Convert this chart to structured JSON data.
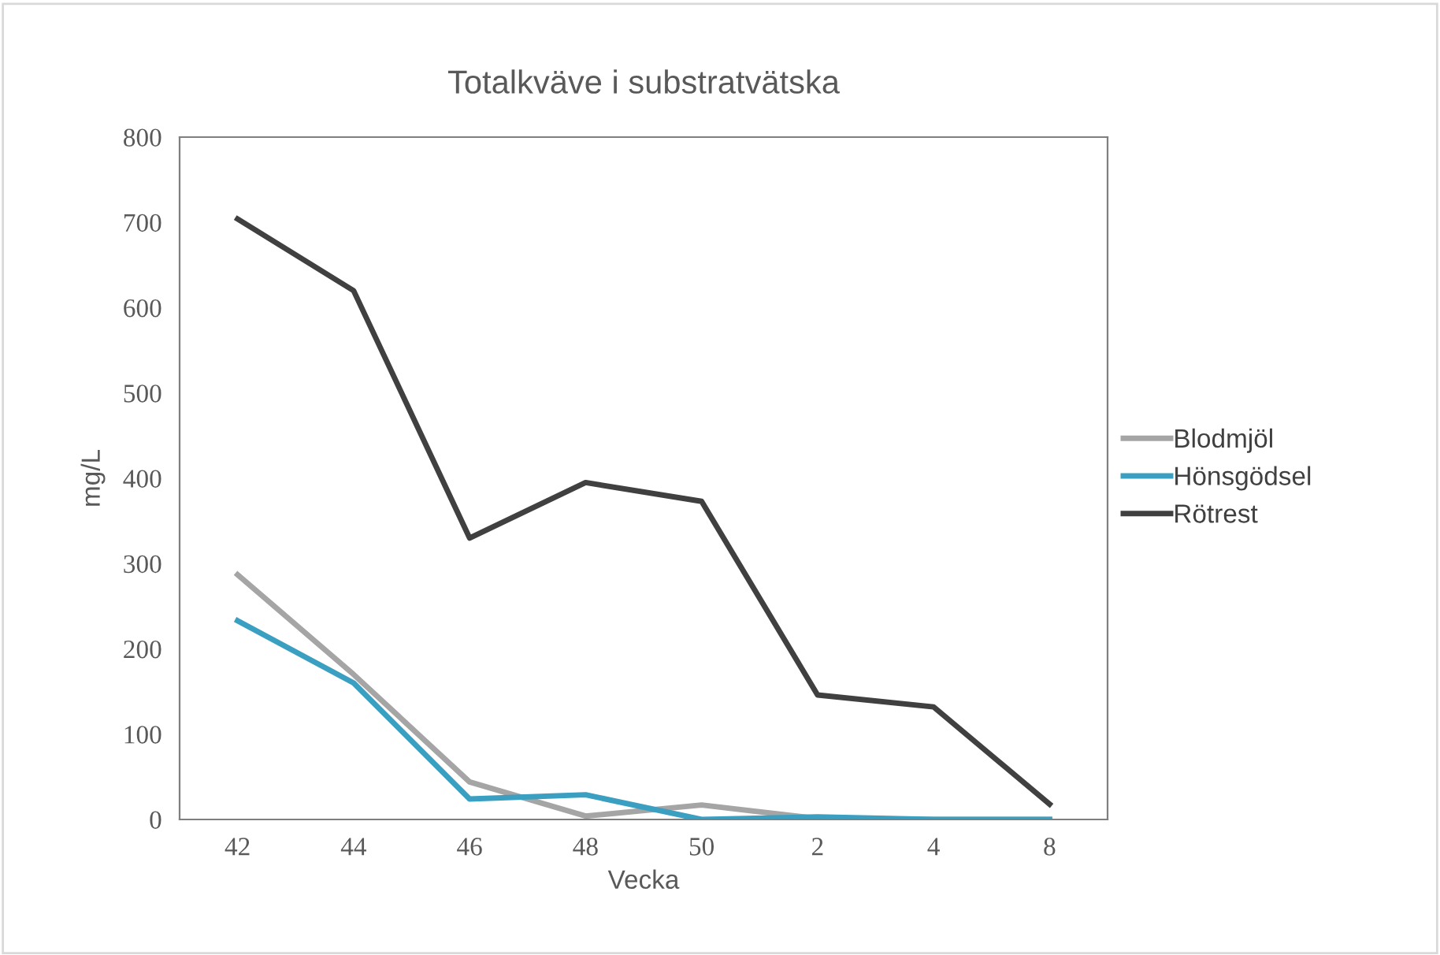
{
  "chart_data": {
    "type": "line",
    "title": "Totalkväve i substratvätska",
    "xlabel": "Vecka",
    "ylabel": "mg/L",
    "categories": [
      "42",
      "44",
      "46",
      "48",
      "50",
      "2",
      "4",
      "8"
    ],
    "series": [
      {
        "name": "Blodmjöl",
        "color": "#a5a5a5",
        "values": [
          287,
          170,
          44,
          4,
          17,
          1,
          0,
          0
        ]
      },
      {
        "name": "Hönsgödsel",
        "color": "#3a9fc0",
        "values": [
          233,
          160,
          24,
          29,
          0,
          3,
          0,
          0
        ]
      },
      {
        "name": "Rötrest",
        "color": "#404040",
        "values": [
          704,
          620,
          330,
          395,
          373,
          146,
          132,
          18
        ]
      }
    ],
    "ylim": [
      0,
      800
    ],
    "yticks": [
      0,
      100,
      200,
      300,
      400,
      500,
      600,
      700,
      800
    ],
    "grid": false,
    "legend": "right",
    "marker": "none",
    "line_style": "solid"
  }
}
